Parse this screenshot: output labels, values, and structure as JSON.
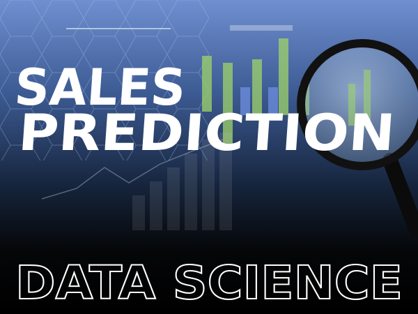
{
  "headline": {
    "line1": "SALES",
    "line2": "PREDICTION"
  },
  "footer": "DATA SCIENCE"
}
